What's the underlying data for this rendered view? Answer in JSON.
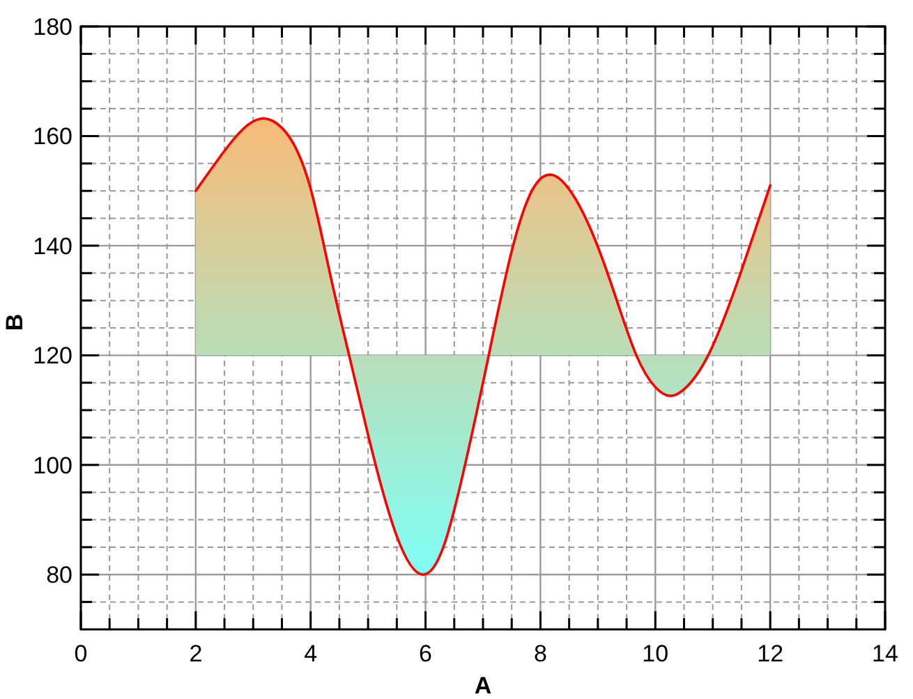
{
  "chart_data": {
    "type": "line",
    "xlabel": "A",
    "ylabel": "B",
    "x": [
      2,
      2.5,
      3.15,
      3.5,
      4,
      4.35,
      4.67,
      5,
      5.5,
      5.95,
      6.31,
      6.58,
      7.1,
      7.5,
      7.85,
      8.21,
      8.5,
      9,
      9.33,
      9.67,
      10,
      10.28,
      10.5,
      10.92,
      11.5,
      12
    ],
    "series": [
      {
        "color": "#ff0000",
        "colors": [
          "#e5c68c",
          "#efc081",
          "#f8bb78",
          "#f6bc7a",
          "#e5c58b",
          "#ced2a4",
          "#b9deb9",
          "#a4eacf",
          "#89f9eb",
          "#7ffff6",
          "#86fbee",
          "#95f3df",
          "#b9deb9",
          "#d5cf9c",
          "#e5c68c",
          "#e9c387",
          "#e6c58b",
          "#d6ce9b",
          "#c8d6aa",
          "#b9deb9",
          "#b1e3c2",
          "#aee4c5",
          "#b0e3c3",
          "#b9deb9",
          "#d0d2a2",
          "#e6c58a"
        ],
        "values": [
          150,
          157.3,
          163.2,
          161.5,
          150.4,
          134.3,
          120,
          105.5,
          87,
          80,
          85,
          95.2,
          120,
          139,
          150,
          152.9,
          150.3,
          139.8,
          130,
          120,
          114.2,
          112.6,
          113.8,
          120,
          135.5,
          151
        ],
        "lower": [
          120,
          120,
          120,
          120,
          120,
          120,
          120,
          105.5,
          87,
          80,
          85,
          95.2,
          120,
          120,
          120,
          120,
          120,
          120,
          120,
          120,
          114.2,
          112.6,
          113.8,
          120,
          120,
          120
        ],
        "upper": [
          150,
          157.3,
          163.2,
          161.5,
          150.4,
          134.3,
          120,
          120,
          120,
          120,
          120,
          120,
          120,
          139,
          150,
          152.9,
          150.3,
          139.8,
          130,
          120,
          120,
          120,
          120,
          120,
          135.5,
          151
        ]
      }
    ],
    "xlim": [
      0,
      14
    ],
    "xticks": [
      0,
      {
        "value": 0.5,
        "label": null
      },
      {
        "value": 1,
        "label": null
      },
      {
        "value": 1.5,
        "label": null
      },
      2,
      {
        "value": 2.5,
        "label": null
      },
      {
        "value": 3,
        "label": null
      },
      {
        "value": 3.5,
        "label": null
      },
      4,
      {
        "value": 4.5,
        "label": null
      },
      {
        "value": 5,
        "label": null
      },
      {
        "value": 5.5,
        "label": null
      },
      6,
      {
        "value": 6.5,
        "label": null
      },
      {
        "value": 7,
        "label": null
      },
      {
        "value": 7.5,
        "label": null
      },
      8,
      {
        "value": 8.5,
        "label": null
      },
      {
        "value": 9,
        "label": null
      },
      {
        "value": 9.5,
        "label": null
      },
      10,
      {
        "value": 10.5,
        "label": null
      },
      {
        "value": 11,
        "label": null
      },
      {
        "value": 11.5,
        "label": null
      },
      12,
      {
        "value": 12.5,
        "label": null
      },
      {
        "value": 13,
        "label": null
      },
      {
        "value": 13.5,
        "label": null
      },
      14
    ],
    "ylim": [
      70,
      180
    ],
    "yticks": [
      {
        "value": 75,
        "label": null
      },
      80,
      {
        "value": 85,
        "label": null
      },
      {
        "value": 90,
        "label": null
      },
      {
        "value": 95,
        "label": null
      },
      100,
      {
        "value": 105,
        "label": null
      },
      {
        "value": 110,
        "label": null
      },
      {
        "value": 115,
        "label": null
      },
      120,
      {
        "value": 125,
        "label": null
      },
      {
        "value": 130,
        "label": null
      },
      {
        "value": 135,
        "label": null
      },
      140,
      {
        "value": 145,
        "label": null
      },
      {
        "value": 150,
        "label": null
      },
      {
        "value": 155,
        "label": null
      },
      160,
      {
        "value": 165,
        "label": null
      },
      {
        "value": 170,
        "label": null
      },
      {
        "value": 175,
        "label": null
      },
      180
    ],
    "grid": true
  }
}
